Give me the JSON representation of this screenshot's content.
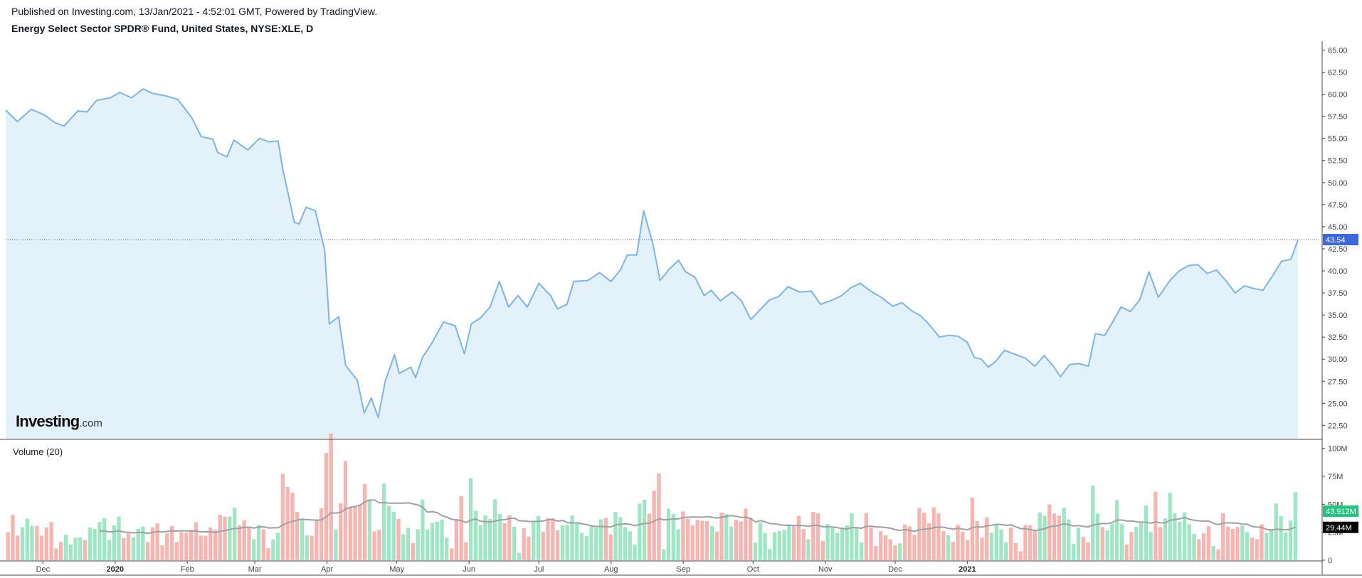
{
  "header": {
    "published": "Published on Investing.com, 13/Jan/2021 - 4:52:01 GMT, Powered by TradingView.",
    "title": "Energy Select Sector SPDR® Fund, United States, NYSE:XLE, D"
  },
  "logo": {
    "brand": "Investing",
    "suffix": ".com"
  },
  "volume_label": "Volume (20)",
  "colors": {
    "line": "#7fb3e6",
    "area": "#e3f1fb",
    "last_price": "#3d68d8",
    "vol_up": "#9fe6c4",
    "vol_down": "#f7b5b1",
    "vol_ma": "#a0a0a0",
    "vol_badge": "#26c281",
    "ma_badge": "#000000"
  },
  "chart_data": [
    {
      "type": "line",
      "title": "Energy Select Sector SPDR® Fund, United States, NYSE:XLE, D",
      "ylim": [
        21,
        66
      ],
      "y_ticks": [
        "65.00",
        "62.50",
        "60.00",
        "57.50",
        "55.00",
        "52.50",
        "50.00",
        "47.50",
        "45.00",
        "42.50",
        "40.00",
        "37.50",
        "35.00",
        "32.50",
        "30.00",
        "27.50",
        "25.00",
        "22.50"
      ],
      "x_ticks": [
        {
          "label": "Dec",
          "date": "2019-12-01",
          "bold": false
        },
        {
          "label": "2020",
          "date": "2020-01-01",
          "bold": true
        },
        {
          "label": "Feb",
          "date": "2020-02-01",
          "bold": false
        },
        {
          "label": "Mar",
          "date": "2020-03-01",
          "bold": false
        },
        {
          "label": "Apr",
          "date": "2020-04-01",
          "bold": false
        },
        {
          "label": "May",
          "date": "2020-05-01",
          "bold": false
        },
        {
          "label": "Jun",
          "date": "2020-06-01",
          "bold": false
        },
        {
          "label": "Jul",
          "date": "2020-07-01",
          "bold": false
        },
        {
          "label": "Aug",
          "date": "2020-08-01",
          "bold": false
        },
        {
          "label": "Sep",
          "date": "2020-09-01",
          "bold": false
        },
        {
          "label": "Oct",
          "date": "2020-10-01",
          "bold": false
        },
        {
          "label": "Nov",
          "date": "2020-11-01",
          "bold": false
        },
        {
          "label": "Dec",
          "date": "2020-12-01",
          "bold": false
        },
        {
          "label": "2021",
          "date": "2021-01-01",
          "bold": true
        }
      ],
      "last_price": 43.54,
      "last_price_label": "43.54",
      "series": [
        {
          "points": [
            [
              "2019-11-15",
              58.2
            ],
            [
              "2019-11-20",
              56.9
            ],
            [
              "2019-11-26",
              58.3
            ],
            [
              "2019-12-02",
              57.6
            ],
            [
              "2019-12-06",
              56.8
            ],
            [
              "2019-12-10",
              56.4
            ],
            [
              "2019-12-16",
              58.1
            ],
            [
              "2019-12-20",
              58.0
            ],
            [
              "2019-12-24",
              59.3
            ],
            [
              "2019-12-30",
              59.6
            ],
            [
              "2020-01-03",
              60.2
            ],
            [
              "2020-01-08",
              59.6
            ],
            [
              "2020-01-13",
              60.6
            ],
            [
              "2020-01-17",
              60.1
            ],
            [
              "2020-01-23",
              59.8
            ],
            [
              "2020-01-28",
              59.4
            ],
            [
              "2020-02-03",
              57.3
            ],
            [
              "2020-02-07",
              55.2
            ],
            [
              "2020-02-12",
              54.9
            ],
            [
              "2020-02-14",
              53.4
            ],
            [
              "2020-02-18",
              52.9
            ],
            [
              "2020-02-21",
              54.8
            ],
            [
              "2020-02-27",
              53.7
            ],
            [
              "2020-03-03",
              55.0
            ],
            [
              "2020-03-07",
              54.6
            ],
            [
              "2020-03-11",
              54.7
            ],
            [
              "2020-03-13",
              51.5
            ],
            [
              "2020-03-18",
              45.5
            ],
            [
              "2020-03-20",
              45.3
            ],
            [
              "2020-03-23",
              47.2
            ],
            [
              "2020-03-27",
              46.8
            ],
            [
              "2020-03-31",
              42.3
            ],
            [
              "2020-04-02",
              34.0
            ],
            [
              "2020-04-06",
              34.8
            ],
            [
              "2020-04-09",
              29.3
            ],
            [
              "2020-04-14",
              27.6
            ],
            [
              "2020-04-17",
              23.9
            ],
            [
              "2020-04-20",
              25.6
            ],
            [
              "2020-04-23",
              23.4
            ],
            [
              "2020-04-26",
              27.5
            ],
            [
              "2020-04-30",
              30.5
            ],
            [
              "2020-05-02",
              28.4
            ],
            [
              "2020-05-07",
              29.1
            ],
            [
              "2020-05-09",
              27.9
            ],
            [
              "2020-05-12",
              30.2
            ],
            [
              "2020-05-16",
              31.8
            ],
            [
              "2020-05-21",
              34.2
            ],
            [
              "2020-05-26",
              33.8
            ],
            [
              "2020-05-30",
              30.6
            ],
            [
              "2020-06-02",
              34.0
            ],
            [
              "2020-06-06",
              34.7
            ],
            [
              "2020-06-10",
              35.9
            ],
            [
              "2020-06-14",
              38.8
            ],
            [
              "2020-06-18",
              35.9
            ],
            [
              "2020-06-22",
              37.2
            ],
            [
              "2020-06-26",
              35.9
            ],
            [
              "2020-07-01",
              38.6
            ],
            [
              "2020-07-06",
              37.2
            ],
            [
              "2020-07-09",
              35.7
            ],
            [
              "2020-07-13",
              36.2
            ],
            [
              "2020-07-16",
              38.8
            ],
            [
              "2020-07-22",
              38.9
            ],
            [
              "2020-07-27",
              39.8
            ],
            [
              "2020-08-01",
              38.8
            ],
            [
              "2020-08-05",
              40.1
            ],
            [
              "2020-08-08",
              41.8
            ],
            [
              "2020-08-12",
              41.8
            ],
            [
              "2020-08-15",
              46.8
            ],
            [
              "2020-08-19",
              43.0
            ],
            [
              "2020-08-22",
              38.9
            ],
            [
              "2020-08-26",
              40.2
            ],
            [
              "2020-08-30",
              41.2
            ],
            [
              "2020-09-02",
              39.9
            ],
            [
              "2020-09-06",
              39.3
            ],
            [
              "2020-09-10",
              37.2
            ],
            [
              "2020-09-13",
              37.8
            ],
            [
              "2020-09-17",
              36.6
            ],
            [
              "2020-09-22",
              37.6
            ],
            [
              "2020-09-26",
              36.6
            ],
            [
              "2020-09-30",
              34.5
            ],
            [
              "2020-10-04",
              35.6
            ],
            [
              "2020-10-08",
              36.7
            ],
            [
              "2020-10-12",
              37.1
            ],
            [
              "2020-10-16",
              38.2
            ],
            [
              "2020-10-21",
              37.6
            ],
            [
              "2020-10-26",
              37.7
            ],
            [
              "2020-10-30",
              36.2
            ],
            [
              "2020-11-04",
              36.7
            ],
            [
              "2020-11-08",
              37.2
            ],
            [
              "2020-11-12",
              38.1
            ],
            [
              "2020-11-16",
              38.6
            ],
            [
              "2020-11-20",
              37.8
            ],
            [
              "2020-11-25",
              37.0
            ],
            [
              "2020-11-30",
              36.0
            ],
            [
              "2020-12-04",
              36.4
            ],
            [
              "2020-12-08",
              35.5
            ],
            [
              "2020-12-12",
              34.9
            ],
            [
              "2020-12-16",
              33.8
            ],
            [
              "2020-12-20",
              32.5
            ],
            [
              "2020-12-24",
              32.7
            ],
            [
              "2020-12-28",
              32.6
            ],
            [
              "2021-01-01",
              31.9
            ],
            [
              "2021-01-04",
              30.2
            ],
            [
              "2021-01-07",
              30.0
            ],
            [
              "2021-01-10",
              29.1
            ],
            [
              "2021-01-13",
              29.7
            ],
            [
              "2021-01-17",
              31.0
            ],
            [
              "2021-01-21",
              30.6
            ],
            [
              "2021-01-26",
              30.1
            ],
            [
              "2021-01-30",
              29.2
            ],
            [
              "2021-02-03",
              30.4
            ],
            [
              "2021-02-07",
              29.2
            ],
            [
              "2021-02-10",
              28.0
            ],
            [
              "2021-02-14",
              29.4
            ],
            [
              "2021-02-18",
              29.5
            ],
            [
              "2021-02-22",
              29.2
            ],
            [
              "2021-02-25",
              32.9
            ],
            [
              "2021-03-01",
              32.7
            ],
            [
              "2021-03-04",
              34.0
            ],
            [
              "2021-03-08",
              35.9
            ],
            [
              "2021-03-12",
              35.4
            ],
            [
              "2021-03-16",
              36.7
            ],
            [
              "2021-03-20",
              39.9
            ],
            [
              "2021-03-24",
              37.0
            ],
            [
              "2021-03-29",
              38.9
            ],
            [
              "2021-04-02",
              40.0
            ],
            [
              "2021-04-06",
              40.6
            ],
            [
              "2021-04-10",
              40.7
            ],
            [
              "2021-04-14",
              39.7
            ],
            [
              "2021-04-18",
              40.1
            ],
            [
              "2021-04-22",
              38.9
            ],
            [
              "2021-04-26",
              37.5
            ],
            [
              "2021-04-30",
              38.3
            ],
            [
              "2021-05-04",
              38.0
            ],
            [
              "2021-05-08",
              37.8
            ],
            [
              "2021-05-12",
              39.4
            ],
            [
              "2021-05-16",
              41.1
            ],
            [
              "2021-05-20",
              41.3
            ],
            [
              "2021-05-23",
              43.54
            ]
          ]
        }
      ]
    },
    {
      "type": "bar",
      "title": "Volume (20)",
      "ylim": [
        0,
        103
      ],
      "unit": "M",
      "y_ticks": [
        "100M",
        "75M",
        "50M",
        "25M",
        "0"
      ],
      "last_volume_label": "43.912M",
      "last_ma_label": "29.44M",
      "volume_ma_period": 20
    }
  ]
}
